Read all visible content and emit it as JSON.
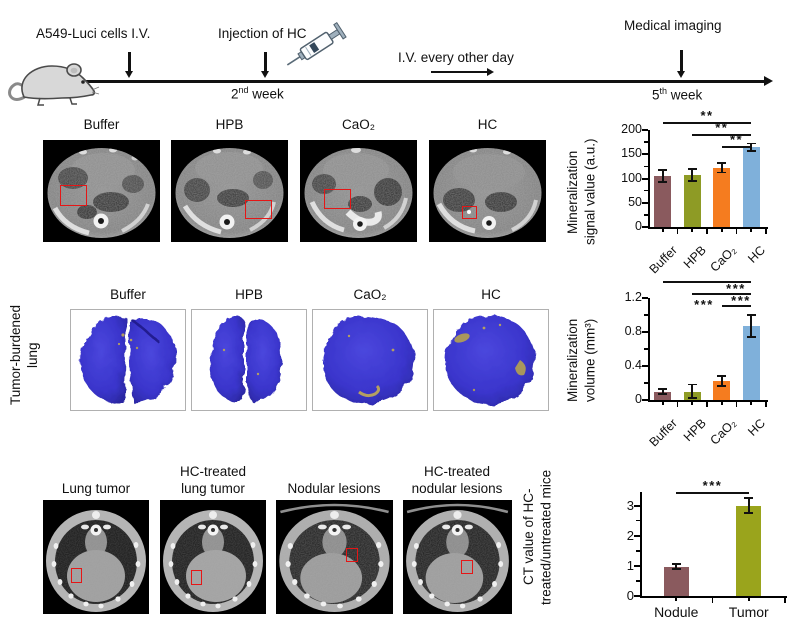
{
  "timeline": {
    "cells_label": "A549-Luci cells I.V.",
    "injection_label": "Injection of HC",
    "iv_label": "I.V. every other day",
    "imaging_label": "Medical imaging",
    "week2_num": "2",
    "week2_sup": "nd",
    "week2_rest": " week",
    "week5_num": "5",
    "week5_sup": "th",
    "week5_rest": " week"
  },
  "row1": {
    "panel_labels": [
      "Buffer",
      "HPB",
      "CaO₂",
      "HC"
    ]
  },
  "row2": {
    "side_label": "Tumor-burdened\nlung",
    "panel_labels": [
      "Buffer",
      "HPB",
      "CaO₂",
      "HC"
    ]
  },
  "row3": {
    "panel_labels": [
      "Lung tumor",
      "HC-treated\nlung tumor",
      "Nodular lesions",
      "HC-treated\nnodular lesions"
    ]
  },
  "colors": {
    "maroon": "#8a5a5e",
    "olive": "#8e9b25",
    "orange": "#f57c1f",
    "blue": "#7fb0da",
    "tumor_olive": "#9aa41c",
    "annotation_red": "#e51616",
    "lung_blue": "#3a35cc",
    "mineral_tan": "#b49f62",
    "axis_black": "#111111"
  },
  "chart_data": [
    {
      "type": "bar",
      "categories": [
        "Buffer",
        "HPB",
        "CaO₂",
        "HC"
      ],
      "values": [
        105,
        107,
        122,
        164
      ],
      "errors": [
        12,
        12,
        10,
        8
      ],
      "title": "",
      "xlabel": "",
      "ylabel": "Mineralization\nsignal value (a.u.)",
      "ylim": [
        0,
        200
      ],
      "yticks": [
        0,
        50,
        100,
        150,
        200
      ],
      "minor_step": 25,
      "grid": false,
      "x_tick_rotation": 45,
      "bar_colors": [
        "#8a5a5e",
        "#8e9b25",
        "#f57c1f",
        "#7fb0da"
      ],
      "significance": [
        {
          "from": "Buffer",
          "to": "HC",
          "label": "**"
        },
        {
          "from": "HPB",
          "to": "HC",
          "label": "**"
        },
        {
          "from": "CaO₂",
          "to": "HC",
          "label": "**"
        }
      ]
    },
    {
      "type": "bar",
      "categories": [
        "Buffer",
        "HPB",
        "CaO₂",
        "HC"
      ],
      "values": [
        0.1,
        0.1,
        0.22,
        0.87
      ],
      "errors": [
        0.03,
        0.08,
        0.06,
        0.13
      ],
      "title": "",
      "xlabel": "",
      "ylabel": "Mineralization\nvolume (mm³)",
      "ylim": [
        0,
        1.2
      ],
      "yticks": [
        0,
        0.4,
        0.8,
        1.2
      ],
      "minor_step": 0.2,
      "grid": false,
      "x_tick_rotation": 45,
      "bar_colors": [
        "#8a5a5e",
        "#8e9b25",
        "#f57c1f",
        "#7fb0da"
      ],
      "significance": [
        {
          "from": "Buffer",
          "to": "HC",
          "label": "***"
        },
        {
          "from": "HPB",
          "to": "HC",
          "label": "***"
        },
        {
          "from": "CaO₂",
          "to": "HC",
          "label": "***"
        }
      ]
    },
    {
      "type": "bar",
      "categories": [
        "Nodule",
        "Tumor"
      ],
      "values": [
        0.97,
        3.0
      ],
      "errors": [
        0.08,
        0.25
      ],
      "title": "",
      "xlabel": "",
      "ylabel": "CT value of HC-\ntreated/untreated mice",
      "ylim": [
        0,
        3.45
      ],
      "yticks": [
        0,
        1,
        2,
        3
      ],
      "minor_step": 0.5,
      "grid": false,
      "x_tick_rotation": 0,
      "bar_colors": [
        "#8a5a5e",
        "#9aa41c"
      ],
      "significance": [
        {
          "from": "Nodule",
          "to": "Tumor",
          "label": "***"
        }
      ]
    }
  ]
}
